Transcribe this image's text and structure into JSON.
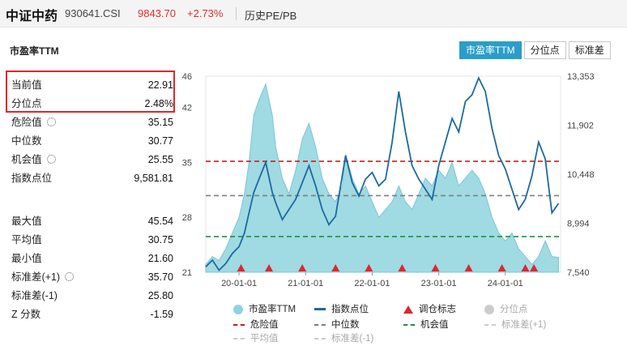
{
  "header": {
    "name": "中证中药",
    "code": "930641.CSI",
    "price": "9843.70",
    "change": "+2.73%",
    "tab": "历史PE/PB"
  },
  "section_title": "市盈率TTM",
  "tabs": [
    "市盈率TTM",
    "分位点",
    "标准差"
  ],
  "stats_top": [
    {
      "label": "当前值",
      "value": "22.91"
    },
    {
      "label": "分位点",
      "value": "2.48%"
    },
    {
      "label": "危险值",
      "value": "35.15",
      "gear": true
    },
    {
      "label": "中位数",
      "value": "30.77"
    },
    {
      "label": "机会值",
      "value": "25.55",
      "gear": true
    },
    {
      "label": "指数点位",
      "value": "9,581.81"
    }
  ],
  "stats_bottom": [
    {
      "label": "最大值",
      "value": "45.54"
    },
    {
      "label": "平均值",
      "value": "30.75"
    },
    {
      "label": "最小值",
      "value": "21.60"
    },
    {
      "label": "标准差(+1)",
      "value": "35.70",
      "gear": true
    },
    {
      "label": "标准差(-1)",
      "value": "25.80"
    },
    {
      "label": "Z 分数",
      "value": "-1.59"
    }
  ],
  "legend": [
    {
      "label": "市盈率TTM",
      "kind": "circle",
      "color": "#8fd3de"
    },
    {
      "label": "指数点位",
      "kind": "line",
      "color": "#1b6a9e"
    },
    {
      "label": "调仓标志",
      "kind": "triangle",
      "color": "#e0262c"
    },
    {
      "label": "分位点",
      "kind": "circle",
      "color": "#cccccc",
      "muted": true
    },
    {
      "label": "危险值",
      "kind": "dash",
      "color": "#c8201f"
    },
    {
      "label": "中位数",
      "kind": "dash",
      "color": "#808080"
    },
    {
      "label": "机会值",
      "kind": "dash",
      "color": "#1a9440"
    },
    {
      "label": "标准差(+1)",
      "kind": "dash",
      "color": "#cccccc",
      "muted": true
    },
    {
      "label": "平均值",
      "kind": "dash",
      "color": "#cccccc",
      "muted": true
    },
    {
      "label": "标准差(-1)",
      "kind": "dash",
      "color": "#cccccc",
      "muted": true
    }
  ],
  "chart_data": {
    "type": "area",
    "x_ticks": [
      "20-01-01",
      "21-01-01",
      "22-01-01",
      "23-01-01",
      "24-01-01"
    ],
    "x_tick_years": [
      2020,
      2021,
      2022,
      2023,
      2024
    ],
    "x_range": [
      2019.5,
      2024.83
    ],
    "y_left": {
      "range": [
        21,
        46
      ],
      "ticks": [
        21,
        28,
        35,
        42,
        46
      ]
    },
    "y_right": {
      "range": [
        7540,
        13353
      ],
      "ticks": [
        "7,540",
        "8,994",
        "10,448",
        "11,902",
        "13,353"
      ],
      "tick_values": [
        7540,
        8994,
        10448,
        11902,
        13353
      ]
    },
    "reference_lines": {
      "danger": 35.15,
      "median": 30.77,
      "opportunity": 25.55
    },
    "pe_series": {
      "name": "市盈率TTM",
      "color": "#8fd3de",
      "x": [
        2019.5,
        2019.6,
        2019.7,
        2019.8,
        2019.9,
        2020.0,
        2020.08,
        2020.15,
        2020.22,
        2020.3,
        2020.4,
        2020.5,
        2020.55,
        2020.65,
        2020.75,
        2020.85,
        2020.95,
        2021.05,
        2021.15,
        2021.25,
        2021.35,
        2021.45,
        2021.55,
        2021.6,
        2021.7,
        2021.8,
        2021.9,
        2022.0,
        2022.1,
        2022.2,
        2022.3,
        2022.4,
        2022.5,
        2022.6,
        2022.7,
        2022.8,
        2022.9,
        2023.0,
        2023.1,
        2023.2,
        2023.3,
        2023.4,
        2023.5,
        2023.6,
        2023.7,
        2023.8,
        2023.9,
        2024.0,
        2024.1,
        2024.2,
        2024.3,
        2024.4,
        2024.5,
        2024.6,
        2024.7,
        2024.8
      ],
      "values": [
        22,
        23,
        22.5,
        24,
        26,
        28,
        31,
        35,
        41,
        43,
        45,
        41,
        37,
        33,
        31,
        34,
        38,
        40,
        37,
        33,
        31,
        30,
        32,
        36,
        33,
        31,
        32,
        30,
        28,
        29,
        30,
        32,
        30,
        29,
        31,
        33,
        32,
        34,
        33,
        35,
        32,
        33,
        34,
        33,
        31,
        28,
        26,
        25,
        26,
        24,
        23,
        22,
        23,
        25,
        23,
        22.9
      ]
    },
    "index_series": {
      "name": "指数点位",
      "color": "#1b6a9e",
      "x": [
        2019.5,
        2019.6,
        2019.7,
        2019.8,
        2019.9,
        2020.0,
        2020.08,
        2020.15,
        2020.22,
        2020.3,
        2020.4,
        2020.5,
        2020.55,
        2020.65,
        2020.75,
        2020.85,
        2020.95,
        2021.05,
        2021.15,
        2021.25,
        2021.35,
        2021.45,
        2021.55,
        2021.6,
        2021.7,
        2021.8,
        2021.9,
        2022.0,
        2022.1,
        2022.2,
        2022.3,
        2022.4,
        2022.5,
        2022.6,
        2022.7,
        2022.8,
        2022.9,
        2023.0,
        2023.1,
        2023.2,
        2023.3,
        2023.4,
        2023.5,
        2023.6,
        2023.7,
        2023.8,
        2023.9,
        2024.0,
        2024.1,
        2024.2,
        2024.3,
        2024.4,
        2024.5,
        2024.6,
        2024.7,
        2024.8
      ],
      "values": [
        7700,
        7900,
        7600,
        7800,
        8100,
        8300,
        8700,
        9300,
        9900,
        10300,
        10800,
        9900,
        9600,
        9100,
        9400,
        9700,
        10200,
        10700,
        10100,
        9400,
        8950,
        9200,
        10400,
        11000,
        10200,
        9800,
        10300,
        10500,
        10100,
        10300,
        11400,
        12900,
        11700,
        10700,
        10300,
        10000,
        9700,
        10700,
        11400,
        12100,
        11700,
        12600,
        12800,
        13300,
        12900,
        11800,
        11000,
        10600,
        10000,
        9400,
        9700,
        10400,
        11400,
        10900,
        9300,
        9581.81
      ]
    },
    "rebalance_markers_x": [
      2020.03,
      2020.45,
      2020.95,
      2021.45,
      2021.95,
      2022.45,
      2022.95,
      2023.45,
      2023.95,
      2024.3,
      2024.43
    ]
  }
}
